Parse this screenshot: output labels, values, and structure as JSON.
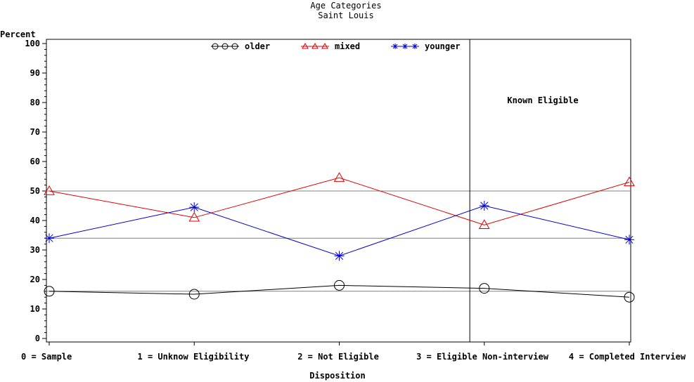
{
  "chart_data": {
    "type": "line",
    "title": "Age Categories",
    "subtitle": "Saint Louis",
    "ylabel": "Percent",
    "xlabel": "Disposition",
    "ylim": [
      0,
      100
    ],
    "yticks": [
      0,
      10,
      20,
      30,
      40,
      50,
      60,
      70,
      80,
      90,
      100
    ],
    "categories": [
      "0 = Sample",
      "1 = Unknow Eligibility",
      "2 = Not Eligible",
      "3 = Eligible Non-interview",
      "4 = Completed Interview"
    ],
    "series": [
      {
        "name": "older",
        "color": "#000000",
        "marker": "circle",
        "values": [
          16,
          15,
          18,
          17,
          14
        ]
      },
      {
        "name": "mixed",
        "color": "#e00000",
        "marker": "triangle",
        "values": [
          50,
          41,
          54.5,
          38.5,
          53
        ]
      },
      {
        "name": "younger",
        "color": "#0000cc",
        "marker": "star",
        "values": [
          34,
          44.5,
          28,
          45,
          33.5
        ]
      }
    ],
    "reference_lines": [
      16,
      34,
      50
    ],
    "divider_after_category": 2.9,
    "annotation": "Known Eligible",
    "legend_position": "top",
    "grid": false
  }
}
